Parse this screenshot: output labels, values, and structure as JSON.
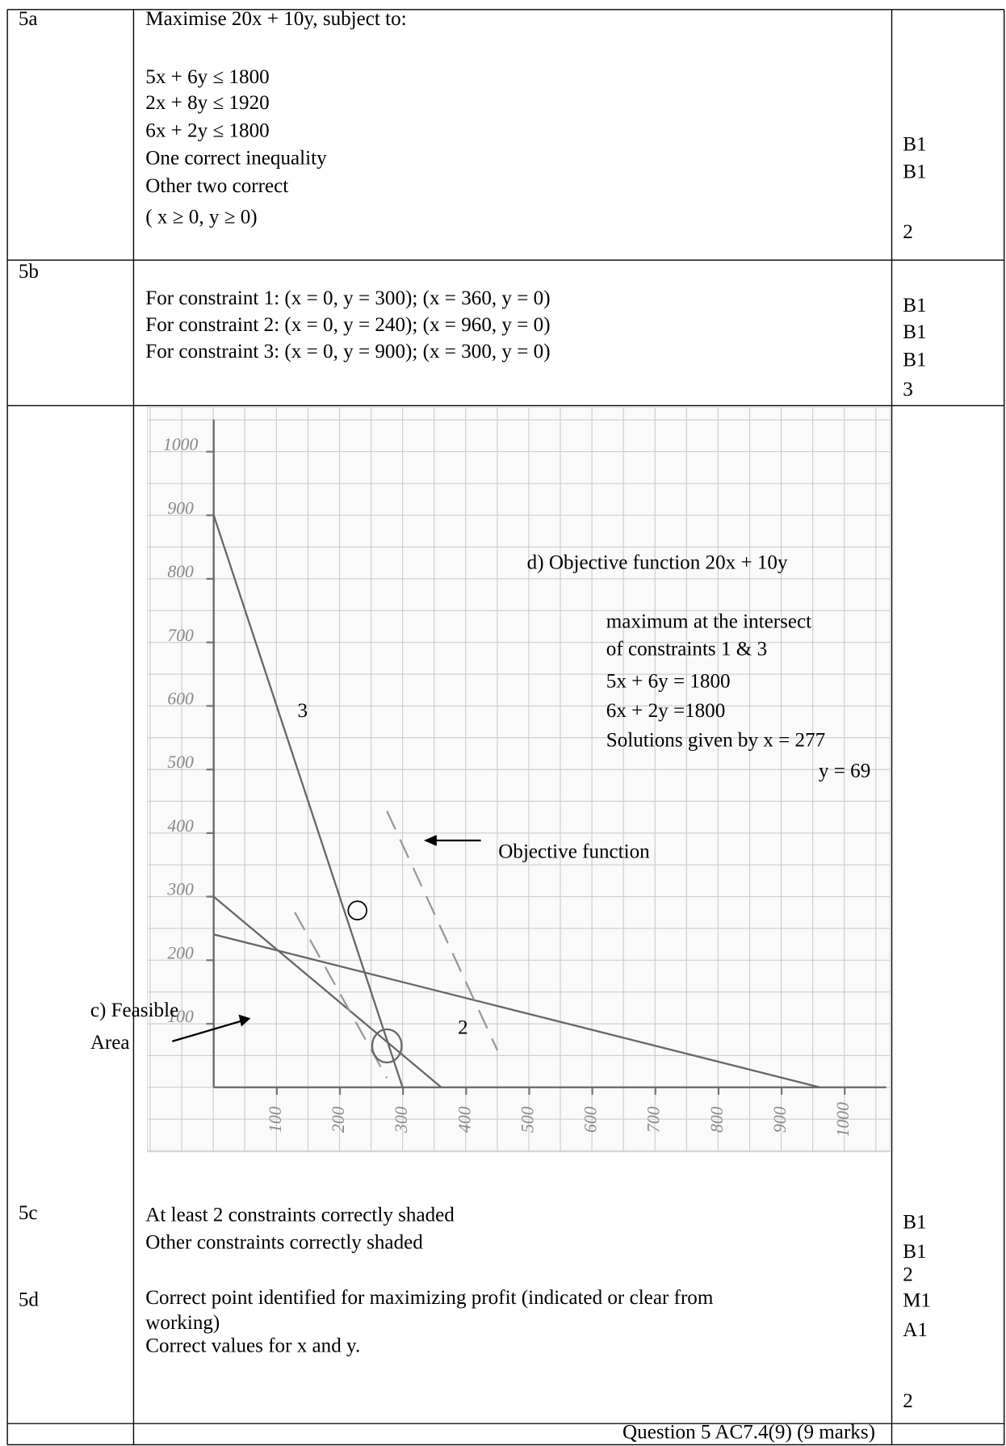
{
  "rows": [
    {
      "label": "5a",
      "lines": [
        "Maximise 20x + 10y, subject to:",
        "5x + 6y ≤ 1800",
        "2x + 8y ≤ 1920",
        "6x + 2y ≤ 1800",
        "One correct inequality",
        "Other two correct",
        "( x ≥ 0, y ≥ 0)"
      ],
      "marks": [
        "B1",
        "B1",
        "2"
      ]
    },
    {
      "label": "5b",
      "lines": [
        "For constraint 1: (x = 0, y = 300); (x = 360, y = 0)",
        "For constraint 2: (x = 0, y = 240); (x = 960, y = 0)",
        "For constraint 3: (x = 0, y = 900); (x = 300, y = 0)"
      ],
      "marks": [
        "B1",
        "B1",
        "B1",
        "3"
      ]
    },
    {
      "parts": [
        {
          "label": "5c",
          "lines": [
            "At least 2 constraints correctly shaded",
            "Other constraints correctly shaded"
          ]
        },
        {
          "label": "5d",
          "lines": [
            "Correct point identified for maximizing profit (indicated or clear from",
            "working)",
            "Correct values for x and y."
          ]
        }
      ],
      "marks": [
        "B1",
        "B1",
        "2",
        "M1",
        "A1",
        "2"
      ]
    }
  ],
  "graph": {
    "xlim": [
      0,
      1060
    ],
    "ylim": [
      0,
      1050
    ],
    "xticks": [
      100,
      200,
      300,
      400,
      500,
      600,
      700,
      800,
      900,
      1000
    ],
    "yticks": [
      100,
      200,
      300,
      400,
      500,
      600,
      700,
      800,
      900,
      1000
    ],
    "line_labels": [
      "3",
      "2"
    ],
    "objective_title": "d) Objective function 20x + 10y",
    "objective_lines": [
      "maximum at the intersect",
      "of constraints 1 & 3",
      "5x + 6y = 1800",
      "6x + 2y =1800",
      "Solutions given by x = 277",
      "y = 69"
    ],
    "arrow_label": "Objective function",
    "feasible": [
      "c) Feasible",
      "Area"
    ]
  },
  "footer": "Question 5 AC7.4(9) (9 marks)"
}
